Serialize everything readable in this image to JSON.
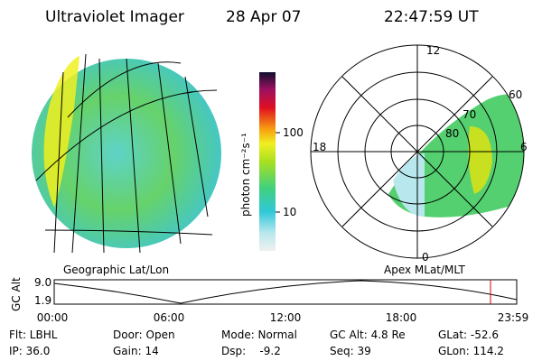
{
  "header": {
    "title": "Ultraviolet Imager",
    "date": "28 Apr 07",
    "time": "22:47:59 UT"
  },
  "colorbar": {
    "label": "photon cm⁻²s⁻¹",
    "ticks": [
      "100",
      "10"
    ]
  },
  "polar": {
    "hours": [
      "12",
      "18",
      "6",
      "0"
    ],
    "latitudes": [
      "60",
      "70",
      "80"
    ]
  },
  "panels": {
    "left": "Geographic Lat/Lon",
    "right": "Apex MLat/MLT"
  },
  "altitude": {
    "axis_label": "GC Alt",
    "yticks": [
      "9.0",
      "1.9"
    ],
    "xticks": [
      "00:00",
      "06:00",
      "12:00",
      "18:00",
      "23:59"
    ]
  },
  "footer": {
    "rows": [
      [
        "Flt: LBHL",
        "Door: Open",
        "Mode: Normal",
        "GC Alt: 4.8 Re",
        "GLat: -52.6"
      ],
      [
        "IP: 36.0",
        "Gain: 14",
        "Dsp:    -9.2",
        "Seq: 39",
        "GLon: 114.2"
      ]
    ]
  }
}
